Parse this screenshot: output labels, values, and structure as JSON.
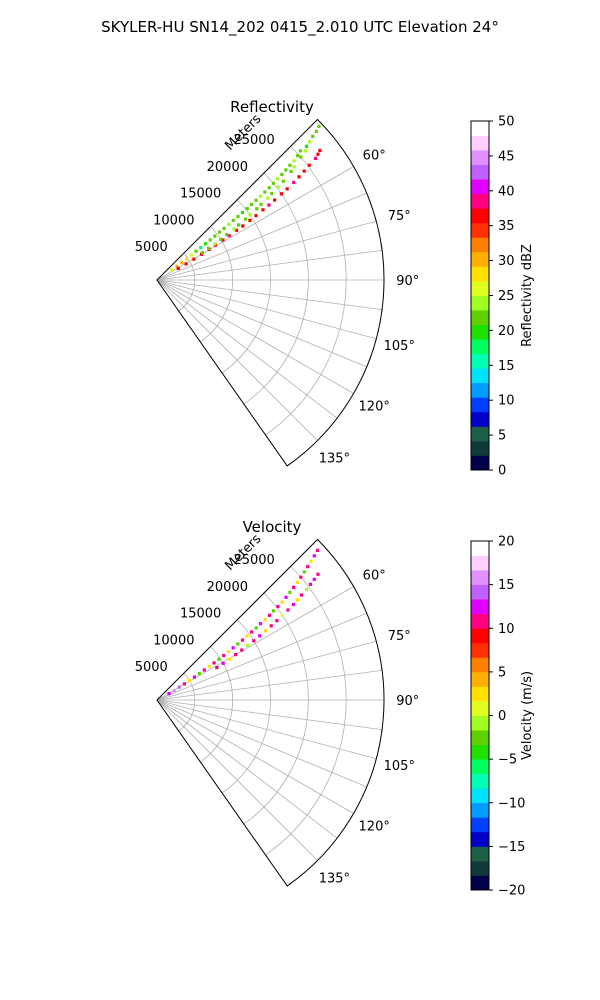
{
  "figure_title": "SKYLER-HU  SN14_202  0415_2.010 UTC Elevation 24°",
  "colors": {
    "reflectivity_scale": [
      "#00004a",
      "#113a3a",
      "#1c5f46",
      "#0000c8",
      "#0040ff",
      "#009cff",
      "#00e0ff",
      "#00ffb0",
      "#00ff60",
      "#20e000",
      "#60d000",
      "#a0ff20",
      "#e0ff20",
      "#ffe000",
      "#ffb000",
      "#ff8000",
      "#ff3000",
      "#ff0000",
      "#ff0080",
      "#e000ff",
      "#c060ff",
      "#e090ff",
      "#ffd0ff",
      "#ffffff"
    ],
    "velocity_scale": [
      "#00004a",
      "#113a3a",
      "#1c5f46",
      "#0000c8",
      "#0040ff",
      "#009cff",
      "#00e0ff",
      "#00ffb0",
      "#00ff60",
      "#20e000",
      "#60d000",
      "#a0ff20",
      "#e0ff20",
      "#ffe000",
      "#ffb000",
      "#ff8000",
      "#ff3000",
      "#ff0000",
      "#ff0080",
      "#e000ff",
      "#c060ff",
      "#e090ff",
      "#ffd0ff",
      "#ffffff"
    ]
  },
  "chart_data": [
    {
      "type": "polar-sector",
      "title": "Reflectivity",
      "radial_label": "Meters",
      "radial_ticks": [
        5000,
        10000,
        15000,
        20000,
        25000
      ],
      "radial_tick_labels": [
        "5000",
        "10000",
        "15000",
        "20000",
        "25000"
      ],
      "rmax": 30000,
      "theta_range_deg": [
        45,
        145
      ],
      "theta_ticks": [
        60,
        75,
        90,
        105,
        120,
        135
      ],
      "theta_tick_labels": [
        "60°",
        "75°",
        "90°",
        "105°",
        "120°",
        "135°"
      ],
      "colorbar": {
        "label": "Reflectivity dBZ",
        "range": [
          0,
          50
        ],
        "ticks": [
          0,
          5,
          10,
          15,
          20,
          25,
          30,
          35,
          40,
          45,
          50
        ],
        "tick_labels": [
          "0",
          "5",
          "10",
          "15",
          "20",
          "25",
          "30",
          "35",
          "40",
          "45",
          "50"
        ]
      },
      "points": [
        [
          46.5,
          29500,
          22
        ],
        [
          47,
          28800,
          22
        ],
        [
          47.3,
          28000,
          21
        ],
        [
          47.8,
          27200,
          23
        ],
        [
          48.2,
          26500,
          20
        ],
        [
          48,
          25500,
          22
        ],
        [
          48.5,
          24800,
          21
        ],
        [
          49,
          24000,
          23
        ],
        [
          49.2,
          23200,
          21
        ],
        [
          49.5,
          22400,
          22
        ],
        [
          49.8,
          21600,
          21
        ],
        [
          50,
          20800,
          23
        ],
        [
          50.3,
          20000,
          21
        ],
        [
          50.6,
          19200,
          22
        ],
        [
          50.8,
          18400,
          21
        ],
        [
          51,
          17600,
          23
        ],
        [
          51.2,
          16800,
          22
        ],
        [
          51.4,
          16000,
          21
        ],
        [
          51.6,
          15200,
          22
        ],
        [
          51.7,
          14400,
          20
        ],
        [
          51.9,
          13600,
          22
        ],
        [
          52,
          12800,
          21
        ],
        [
          52.2,
          12000,
          23
        ],
        [
          52.4,
          11200,
          22
        ],
        [
          52.6,
          10400,
          21
        ],
        [
          52.8,
          9600,
          22
        ],
        [
          53,
          8800,
          21
        ],
        [
          53.2,
          8000,
          20
        ],
        [
          53.4,
          7200,
          18
        ],
        [
          53.6,
          6400,
          22
        ],
        [
          54,
          5600,
          25
        ],
        [
          54.5,
          4800,
          28
        ],
        [
          55,
          4000,
          30
        ],
        [
          55.5,
          3200,
          31
        ],
        [
          56,
          2400,
          27
        ],
        [
          51.5,
          27500,
          37
        ],
        [
          52,
          27000,
          36
        ],
        [
          52.5,
          26400,
          38
        ],
        [
          53,
          25200,
          36
        ],
        [
          53.5,
          24200,
          37
        ],
        [
          54,
          23200,
          36
        ],
        [
          54.5,
          22200,
          38
        ],
        [
          55,
          21000,
          36
        ],
        [
          55.3,
          20000,
          37
        ],
        [
          55.8,
          18800,
          36
        ],
        [
          56.2,
          17800,
          38
        ],
        [
          56.5,
          16800,
          36
        ],
        [
          57,
          15600,
          37
        ],
        [
          57.3,
          14600,
          36
        ],
        [
          57.8,
          13400,
          37
        ],
        [
          58,
          12400,
          36
        ],
        [
          58.5,
          11200,
          38
        ],
        [
          58.8,
          10200,
          36
        ],
        [
          59.2,
          9000,
          37
        ],
        [
          59.5,
          8000,
          36
        ],
        [
          60,
          6800,
          37
        ],
        [
          60.5,
          5600,
          36
        ],
        [
          61,
          4400,
          37
        ],
        [
          61.5,
          3200,
          36
        ],
        [
          49,
          26000,
          23
        ],
        [
          49.5,
          25000,
          21
        ],
        [
          50.5,
          23500,
          24
        ],
        [
          51,
          22800,
          22
        ],
        [
          52,
          21200,
          22
        ],
        [
          52.5,
          20200,
          23
        ],
        [
          53,
          19000,
          22
        ],
        [
          53.5,
          18200,
          23
        ],
        [
          54,
          17000,
          21
        ],
        [
          54.5,
          16200,
          22
        ],
        [
          55,
          15000,
          23
        ],
        [
          55.5,
          14200,
          21
        ],
        [
          56,
          13000,
          22
        ],
        [
          56.5,
          12200,
          23
        ],
        [
          57,
          11000,
          21
        ],
        [
          57.5,
          10000,
          22
        ],
        [
          58,
          9000,
          23
        ],
        [
          58.5,
          8000,
          21
        ],
        [
          59,
          7000,
          22
        ]
      ]
    },
    {
      "type": "polar-sector",
      "title": "Velocity",
      "radial_label": "Meters",
      "radial_ticks": [
        5000,
        10000,
        15000,
        20000,
        25000
      ],
      "radial_tick_labels": [
        "5000",
        "10000",
        "15000",
        "20000",
        "25000"
      ],
      "rmax": 30000,
      "theta_range_deg": [
        45,
        145
      ],
      "theta_ticks": [
        60,
        75,
        90,
        105,
        120,
        135
      ],
      "theta_tick_labels": [
        "60°",
        "75°",
        "90°",
        "105°",
        "120°",
        "135°"
      ],
      "colorbar": {
        "label": "Velocity (m/s)",
        "range": [
          -20,
          20
        ],
        "ticks": [
          -20,
          -15,
          -10,
          -5,
          0,
          5,
          10,
          15,
          20
        ],
        "tick_labels": [
          "−20",
          "−15",
          "−10",
          "−5",
          "0",
          "5",
          "10",
          "15",
          "20"
        ]
      },
      "points": [
        [
          47,
          29000,
          10
        ],
        [
          47.5,
          28200,
          12
        ],
        [
          48,
          27400,
          3
        ],
        [
          48.5,
          26600,
          10
        ],
        [
          49,
          25800,
          -3
        ],
        [
          49.5,
          25000,
          11
        ],
        [
          50,
          24200,
          2
        ],
        [
          50.5,
          23400,
          10
        ],
        [
          51,
          22600,
          -2
        ],
        [
          51.5,
          21800,
          12
        ],
        [
          52,
          21000,
          3
        ],
        [
          52.3,
          20200,
          10
        ],
        [
          52.6,
          19400,
          -3
        ],
        [
          53,
          18600,
          11
        ],
        [
          53.3,
          17800,
          2
        ],
        [
          53.6,
          17000,
          12
        ],
        [
          54,
          16200,
          -2
        ],
        [
          54.3,
          15400,
          10
        ],
        [
          54.6,
          14600,
          3
        ],
        [
          55,
          13800,
          11
        ],
        [
          55.3,
          13000,
          -3
        ],
        [
          55.6,
          12200,
          12
        ],
        [
          56,
          11400,
          2
        ],
        [
          56.3,
          10600,
          10
        ],
        [
          56.6,
          9800,
          -2
        ],
        [
          57,
          9000,
          11
        ],
        [
          57.3,
          8200,
          3
        ],
        [
          57.6,
          7400,
          10
        ],
        [
          58,
          6600,
          -3
        ],
        [
          58.5,
          5800,
          12
        ],
        [
          59,
          5000,
          2
        ],
        [
          59.5,
          4200,
          10
        ],
        [
          60,
          3400,
          14
        ],
        [
          61,
          2600,
          16
        ],
        [
          62,
          1800,
          12
        ],
        [
          52,
          27000,
          10
        ],
        [
          52.5,
          26200,
          12
        ],
        [
          53,
          25400,
          11
        ],
        [
          53.5,
          24600,
          -1
        ],
        [
          54,
          23600,
          10
        ],
        [
          54.5,
          22800,
          2
        ],
        [
          55,
          22000,
          12
        ],
        [
          55.5,
          21000,
          10
        ],
        [
          56,
          20000,
          0
        ],
        [
          56.5,
          19000,
          11
        ],
        [
          57,
          18000,
          10
        ],
        [
          57.5,
          17000,
          3
        ],
        [
          58,
          16000,
          12
        ],
        [
          58.5,
          15000,
          10
        ],
        [
          59,
          14000,
          -1
        ],
        [
          59.5,
          13000,
          11
        ],
        [
          60,
          12000,
          10
        ],
        [
          60.5,
          11000,
          2
        ],
        [
          61,
          10000,
          12
        ],
        [
          61.5,
          9000,
          10
        ]
      ]
    }
  ]
}
